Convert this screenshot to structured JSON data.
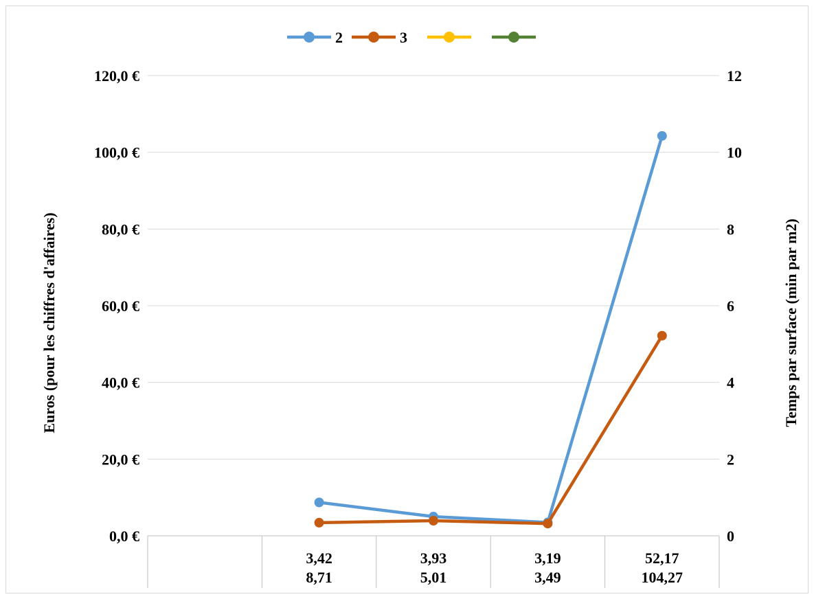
{
  "chart_data": {
    "type": "line",
    "title": "",
    "ylabel": "Euros (pour les chiffres d'affaires)",
    "ylabel_right": "Temps par surface (min par m2)",
    "ylim": [
      0,
      120
    ],
    "ylim_right": [
      0,
      12
    ],
    "y_ticks": [
      "0,0 €",
      "20,0 €",
      "40,0 €",
      "60,0 €",
      "80,0 €",
      "100,0 €",
      "120,0 €"
    ],
    "y_ticks_right": [
      "0",
      "2",
      "4",
      "6",
      "8",
      "10",
      "12"
    ],
    "categories": [
      {
        "line1": "",
        "line2": ""
      },
      {
        "line1": "3,42",
        "line2": "8,71"
      },
      {
        "line1": "3,93",
        "line2": "5,01"
      },
      {
        "line1": "3,19",
        "line2": "3,49"
      },
      {
        "line1": "52,17",
        "line2": "104,27"
      }
    ],
    "series": [
      {
        "name": "2",
        "color": "#5b9bd5",
        "values": [
          null,
          8.71,
          5.01,
          3.49,
          104.27
        ]
      },
      {
        "name": "3",
        "color": "#c55a11",
        "values": [
          null,
          3.42,
          3.93,
          3.19,
          52.17
        ]
      },
      {
        "name": "",
        "color": "#ffc000",
        "values": [
          null,
          null,
          null,
          null,
          null
        ]
      },
      {
        "name": "",
        "color": "#548235",
        "values": [
          null,
          null,
          null,
          null,
          null
        ]
      }
    ],
    "grid": true,
    "legend": "top-center"
  }
}
